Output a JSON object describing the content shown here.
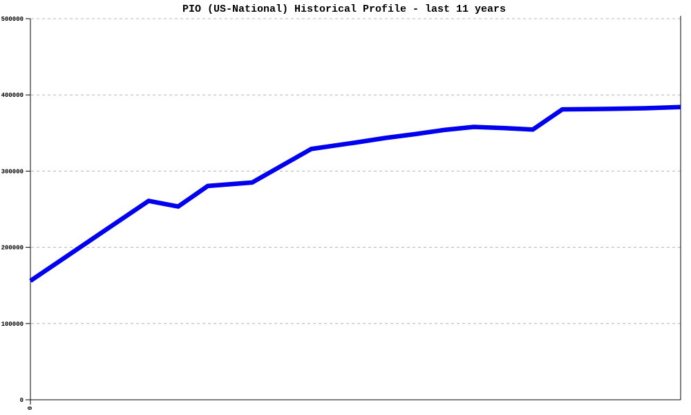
{
  "chart_data": {
    "type": "line",
    "title": "PIO (US-National) Historical Profile - last 11 years",
    "xlabel": "",
    "ylabel": "",
    "xlim": [
      0,
      11
    ],
    "ylim": [
      0,
      500000
    ],
    "y_ticks": [
      "0",
      "100000",
      "200000",
      "300000",
      "400000",
      "500000"
    ],
    "x_ticks": [
      "0"
    ],
    "grid": "horizontal-dashed",
    "legend": "none",
    "series": [
      {
        "name": "PIO historical profile",
        "x": [
          0,
          2.0,
          2.5,
          3.0,
          3.75,
          4.75,
          5.5,
          6.0,
          6.5,
          7.0,
          7.5,
          8.0,
          8.5,
          9.0,
          9.6,
          10.4,
          11.0
        ],
        "values": [
          156000,
          261000,
          253500,
          280500,
          285000,
          329000,
          337500,
          343500,
          348500,
          354000,
          358000,
          356500,
          354500,
          381000,
          381500,
          382500,
          384000
        ]
      }
    ],
    "colors": {
      "line": "#0000ee",
      "grid": "#b4b4b4",
      "axis": "#000000",
      "background": "#ffffff",
      "title_text": "#000000"
    }
  }
}
